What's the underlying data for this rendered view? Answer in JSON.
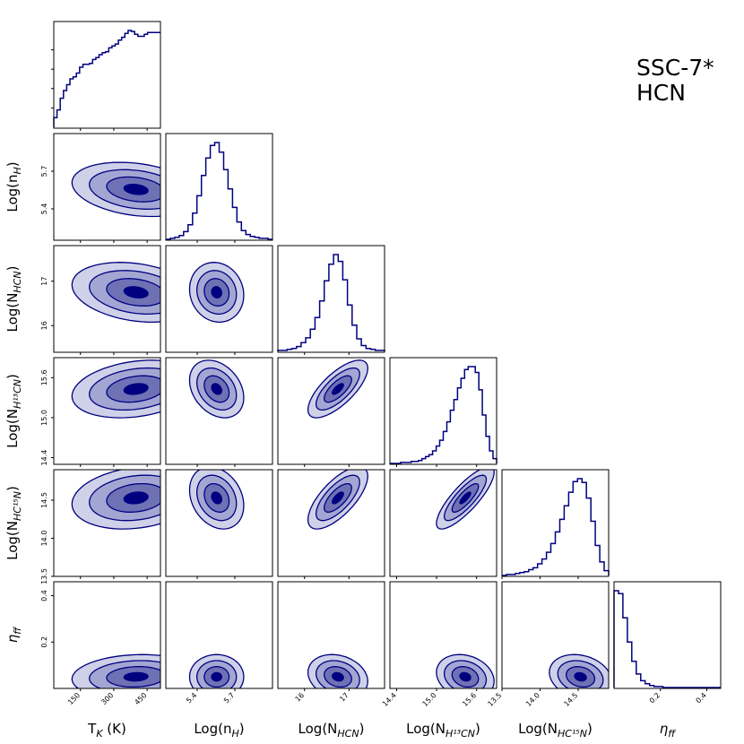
{
  "label": {
    "line1": "SSC-7*",
    "line2": "HCN"
  },
  "colors": {
    "line": "#000080",
    "fill_levels": [
      "#cfd1e8",
      "#a3a6d2",
      "#6e72b5",
      "#000080"
    ],
    "frame": "#000000"
  },
  "chart_data": {
    "type": "corner",
    "parameters": [
      {
        "key": "tk",
        "label": "T",
        "sub": "K",
        "tail": " (K)",
        "range": [
          30,
          510
        ],
        "ticks": [
          150,
          300,
          450
        ],
        "tick_labels": [
          "150",
          "300",
          "450"
        ]
      },
      {
        "key": "nh",
        "label": "Log(n",
        "sub": "H",
        "tail": ")",
        "range": [
          5.15,
          6.0
        ],
        "ticks": [
          5.4,
          5.7
        ],
        "tick_labels": [
          "5.4",
          "5.7"
        ]
      },
      {
        "key": "nhcn",
        "label": "Log(N",
        "sub": "HCN",
        "tail": ")",
        "range": [
          15.4,
          17.8
        ],
        "ticks": [
          16,
          17
        ],
        "tick_labels": [
          "16",
          "17"
        ]
      },
      {
        "key": "nh13",
        "label": "Log(N",
        "sub": "H¹³CN",
        "tail": ")",
        "range": [
          14.3,
          15.9
        ],
        "ticks": [
          14.4,
          15.0,
          15.6
        ],
        "tick_labels": [
          "14.4",
          "15.0",
          "15.6"
        ]
      },
      {
        "key": "nhc15",
        "label": "Log(N",
        "sub": "HC¹⁵N",
        "tail": ")",
        "range": [
          13.5,
          14.9
        ],
        "ticks": [
          13.5,
          14.0,
          14.5
        ],
        "tick_labels": [
          "13.5",
          "14.0",
          "14.5"
        ]
      },
      {
        "key": "eta",
        "label": "η",
        "sub": "ff",
        "tail": "",
        "range": [
          0.0,
          0.46
        ],
        "ticks": [
          0.2,
          0.4
        ],
        "tick_labels": [
          "0.2",
          "0.4"
        ]
      }
    ],
    "marginals": [
      {
        "values": [
          0.1,
          0.18,
          0.3,
          0.38,
          0.44,
          0.5,
          0.52,
          0.56,
          0.62,
          0.65,
          0.65,
          0.66,
          0.7,
          0.72,
          0.75,
          0.77,
          0.78,
          0.82,
          0.84,
          0.86,
          0.9,
          0.93,
          0.97,
          1.0,
          0.99,
          0.96,
          0.94,
          0.94,
          0.96,
          0.98,
          0.98,
          0.98,
          0.98
        ]
      },
      {
        "values": [
          0.0,
          0.01,
          0.02,
          0.04,
          0.08,
          0.15,
          0.27,
          0.45,
          0.66,
          0.84,
          0.97,
          1.0,
          0.9,
          0.72,
          0.52,
          0.33,
          0.18,
          0.09,
          0.05,
          0.03,
          0.02,
          0.01,
          0.01,
          0.0
        ]
      },
      {
        "values": [
          0.01,
          0.01,
          0.02,
          0.03,
          0.05,
          0.09,
          0.14,
          0.23,
          0.35,
          0.52,
          0.73,
          0.9,
          1.0,
          0.93,
          0.74,
          0.48,
          0.27,
          0.13,
          0.06,
          0.03,
          0.02,
          0.01,
          0.01
        ]
      },
      {
        "values": [
          0.0,
          0.0,
          0.0,
          0.01,
          0.01,
          0.01,
          0.02,
          0.02,
          0.03,
          0.05,
          0.07,
          0.09,
          0.13,
          0.18,
          0.24,
          0.33,
          0.43,
          0.55,
          0.66,
          0.78,
          0.88,
          0.97,
          1.0,
          1.0,
          0.94,
          0.76,
          0.5,
          0.28,
          0.13,
          0.05
        ]
      },
      {
        "values": [
          0.0,
          0.01,
          0.01,
          0.02,
          0.03,
          0.04,
          0.06,
          0.08,
          0.12,
          0.17,
          0.24,
          0.33,
          0.45,
          0.58,
          0.72,
          0.86,
          0.97,
          1.0,
          0.96,
          0.8,
          0.56,
          0.31,
          0.14,
          0.05
        ]
      },
      {
        "values": [
          1.0,
          0.97,
          0.72,
          0.47,
          0.27,
          0.14,
          0.07,
          0.04,
          0.02,
          0.01,
          0.01,
          0.0,
          0.0,
          0.0,
          0.0,
          0.0,
          0.0,
          0.0,
          0.0,
          0.0,
          0.0,
          0.0,
          0.0,
          0.0
        ]
      }
    ],
    "correlations": [
      [
        1,
        -0.25,
        -0.25,
        0.25,
        0.2,
        0.1
      ],
      [
        -0.25,
        1,
        -0.1,
        -0.3,
        -0.25,
        0.0
      ],
      [
        -0.25,
        -0.1,
        1,
        0.72,
        0.7,
        -0.2
      ],
      [
        0.25,
        -0.3,
        0.72,
        1,
        0.82,
        -0.2
      ],
      [
        0.2,
        -0.25,
        0.7,
        0.82,
        1,
        -0.2
      ],
      [
        0.1,
        0.0,
        -0.2,
        -0.2,
        -0.2,
        1
      ]
    ],
    "centers": [
      400,
      5.555,
      16.75,
      15.43,
      14.53,
      0.05
    ],
    "spreads": [
      120,
      0.09,
      0.28,
      0.18,
      0.17,
      0.04
    ]
  }
}
